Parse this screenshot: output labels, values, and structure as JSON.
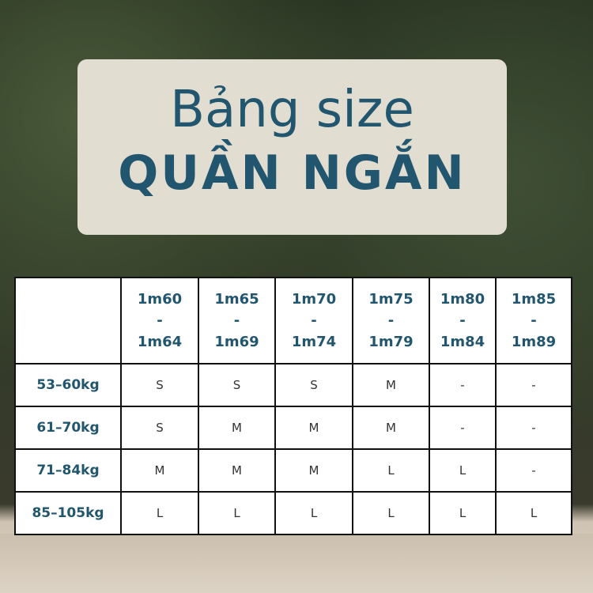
{
  "title": {
    "line1": "Bảng size",
    "line2": "QUẦN NGẮN"
  },
  "table": {
    "columns": [
      [
        "1m60",
        "-",
        "1m64"
      ],
      [
        "1m65",
        "-",
        "1m69"
      ],
      [
        "1m70",
        "-",
        "1m74"
      ],
      [
        "1m75",
        "-",
        "1m79"
      ],
      [
        "1m80",
        "-",
        "1m84"
      ],
      [
        "1m85",
        "-",
        "1m89"
      ]
    ],
    "rows": [
      {
        "label": "53–60kg",
        "values": [
          "S",
          "S",
          "S",
          "M",
          "-",
          "-"
        ]
      },
      {
        "label": "61–70kg",
        "values": [
          "S",
          "M",
          "M",
          "M",
          "-",
          "-"
        ]
      },
      {
        "label": "71–84kg",
        "values": [
          "M",
          "M",
          "M",
          "L",
          "L",
          "-"
        ]
      },
      {
        "label": "85–105kg",
        "values": [
          "L",
          "L",
          "L",
          "L",
          "L",
          "L"
        ]
      }
    ]
  },
  "colors": {
    "accent": "#22566e",
    "card": "#e2ddd1"
  }
}
